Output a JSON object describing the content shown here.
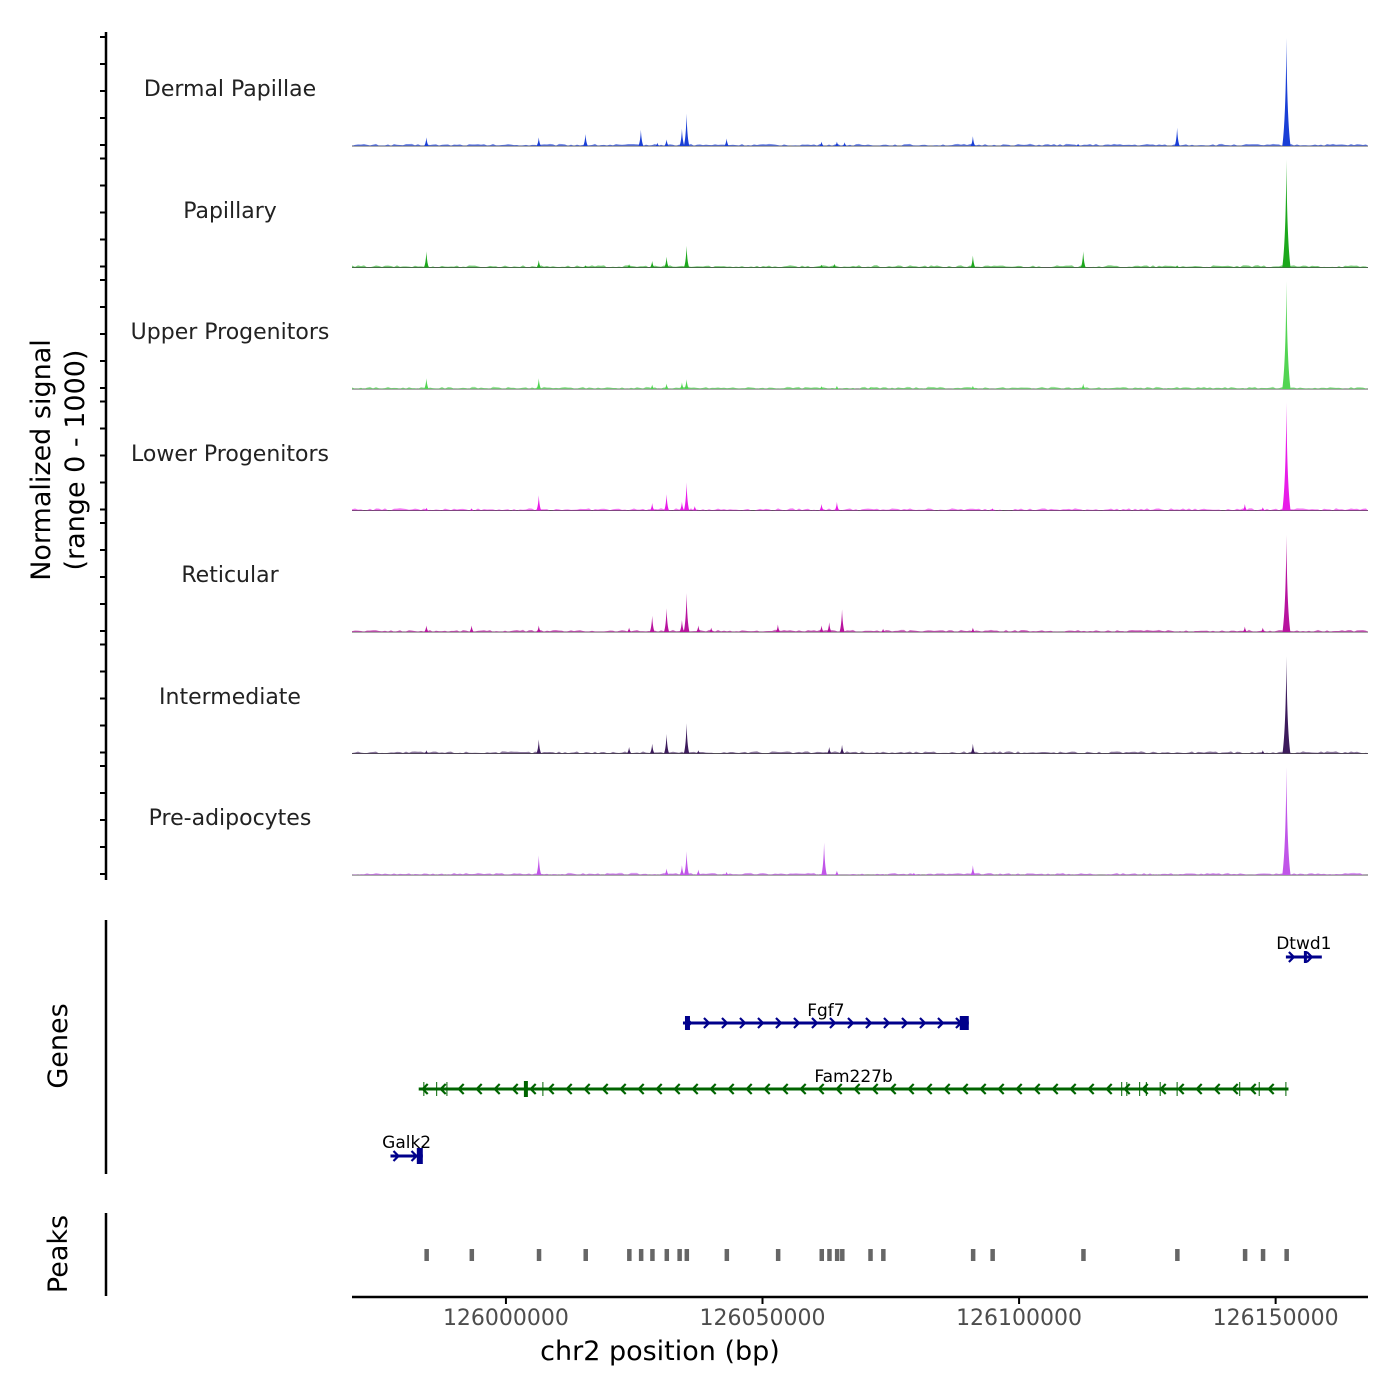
{
  "chart_data": {
    "type": "area",
    "title": "",
    "ylabel": "Normalized signal (range 0 - 1000)",
    "xlabel": "chr2 position (bp)",
    "xlim": [
      125970000,
      126168000
    ],
    "ylim": [
      0,
      1000
    ],
    "x_ticks": [
      126000000,
      126050000,
      126100000,
      126150000
    ],
    "x_tick_labels": [
      "126000000",
      "126050000",
      "126100000",
      "126150000"
    ],
    "tracks": [
      {
        "name": "Dermal Papillae",
        "color": "#1a3fd6",
        "peaks": [
          [
            125984500,
            80
          ],
          [
            126006400,
            80
          ],
          [
            126015500,
            110
          ],
          [
            126026300,
            150
          ],
          [
            126029500,
            30
          ],
          [
            126031300,
            60
          ],
          [
            126034300,
            160
          ],
          [
            126035200,
            300
          ],
          [
            126043000,
            70
          ],
          [
            126061500,
            40
          ],
          [
            126064500,
            40
          ],
          [
            126066000,
            35
          ],
          [
            126091000,
            90
          ],
          [
            126111500,
            20
          ],
          [
            126130800,
            170
          ],
          [
            126152100,
            1000
          ]
        ]
      },
      {
        "name": "Papillary",
        "color": "#1ca81c",
        "peaks": [
          [
            125984500,
            150
          ],
          [
            126006400,
            70
          ],
          [
            126015500,
            20
          ],
          [
            126024000,
            30
          ],
          [
            126028500,
            60
          ],
          [
            126031300,
            100
          ],
          [
            126035200,
            200
          ],
          [
            126061500,
            25
          ],
          [
            126064000,
            35
          ],
          [
            126091000,
            110
          ],
          [
            126112500,
            150
          ],
          [
            126130800,
            20
          ],
          [
            126152100,
            1000
          ]
        ]
      },
      {
        "name": "Upper Progenitors",
        "color": "#52d452",
        "peaks": [
          [
            125984500,
            100
          ],
          [
            126006400,
            100
          ],
          [
            126028500,
            40
          ],
          [
            126031300,
            50
          ],
          [
            126034300,
            60
          ],
          [
            126035200,
            90
          ],
          [
            126061500,
            25
          ],
          [
            126064500,
            30
          ],
          [
            126071000,
            15
          ],
          [
            126091000,
            30
          ],
          [
            126112500,
            50
          ],
          [
            126152100,
            1000
          ]
        ]
      },
      {
        "name": "Lower Progenitors",
        "color": "#e81ce8",
        "peaks": [
          [
            125984500,
            25
          ],
          [
            125993300,
            20
          ],
          [
            126006400,
            140
          ],
          [
            126028500,
            70
          ],
          [
            126031300,
            150
          ],
          [
            126034300,
            80
          ],
          [
            126035200,
            260
          ],
          [
            126036800,
            40
          ],
          [
            126061500,
            60
          ],
          [
            126064500,
            80
          ],
          [
            126094800,
            20
          ],
          [
            126144000,
            60
          ],
          [
            126147500,
            30
          ],
          [
            126152100,
            1000
          ]
        ]
      },
      {
        "name": "Reticular",
        "color": "#b8139e",
        "peaks": [
          [
            125984500,
            60
          ],
          [
            125993300,
            60
          ],
          [
            126006400,
            60
          ],
          [
            126024000,
            40
          ],
          [
            126028500,
            150
          ],
          [
            126031300,
            220
          ],
          [
            126034300,
            110
          ],
          [
            126035200,
            360
          ],
          [
            126037500,
            60
          ],
          [
            126040000,
            40
          ],
          [
            126053000,
            70
          ],
          [
            126061500,
            60
          ],
          [
            126063000,
            90
          ],
          [
            126065500,
            210
          ],
          [
            126073500,
            30
          ],
          [
            126091000,
            40
          ],
          [
            126144000,
            50
          ],
          [
            126147500,
            40
          ],
          [
            126152100,
            900
          ]
        ]
      },
      {
        "name": "Intermediate",
        "color": "#3d1b5c",
        "peaks": [
          [
            125984500,
            30
          ],
          [
            126006400,
            130
          ],
          [
            126024000,
            60
          ],
          [
            126028500,
            90
          ],
          [
            126031300,
            180
          ],
          [
            126035200,
            280
          ],
          [
            126037500,
            30
          ],
          [
            126063000,
            60
          ],
          [
            126065500,
            80
          ],
          [
            126091000,
            90
          ],
          [
            126147500,
            30
          ],
          [
            126152100,
            900
          ]
        ]
      },
      {
        "name": "Pre-adipocytes",
        "color": "#c055e8",
        "peaks": [
          [
            126006400,
            180
          ],
          [
            126031300,
            60
          ],
          [
            126034300,
            90
          ],
          [
            126035200,
            220
          ],
          [
            126037500,
            50
          ],
          [
            126043000,
            30
          ],
          [
            126062000,
            300
          ],
          [
            126064500,
            40
          ],
          [
            126079500,
            20
          ],
          [
            126091000,
            90
          ],
          [
            126152100,
            1000
          ]
        ]
      }
    ],
    "genes": [
      {
        "name": "Dtwd1",
        "start": 126152000,
        "end": 126159000,
        "strand": "+",
        "color": "#00008b",
        "row": 1
      },
      {
        "name": "Fgf7",
        "start": 126034500,
        "end": 126090200,
        "strand": "+",
        "color": "#00008b",
        "row": 2
      },
      {
        "name": "Fam227b",
        "start": 125983000,
        "end": 126152500,
        "strand": "-",
        "color": "#006400",
        "row": 3
      },
      {
        "name": "Galk2",
        "start": 125977500,
        "end": 125983800,
        "strand": "+",
        "color": "#00008b",
        "row": 4
      }
    ],
    "peak_regions": [
      125984500,
      125993300,
      126006400,
      126015500,
      126024000,
      126026300,
      126028500,
      126031300,
      126033800,
      126035200,
      126043000,
      126053000,
      126061500,
      126063000,
      126064500,
      126065500,
      126071000,
      126073500,
      126091000,
      126094800,
      126112500,
      126130800,
      126144000,
      126147500,
      126152100
    ],
    "panels": {
      "genes_label": "Genes",
      "peaks_label": "Peaks"
    },
    "ylabel_lines": [
      "Normalized signal",
      "(range 0 - 1000)"
    ]
  }
}
